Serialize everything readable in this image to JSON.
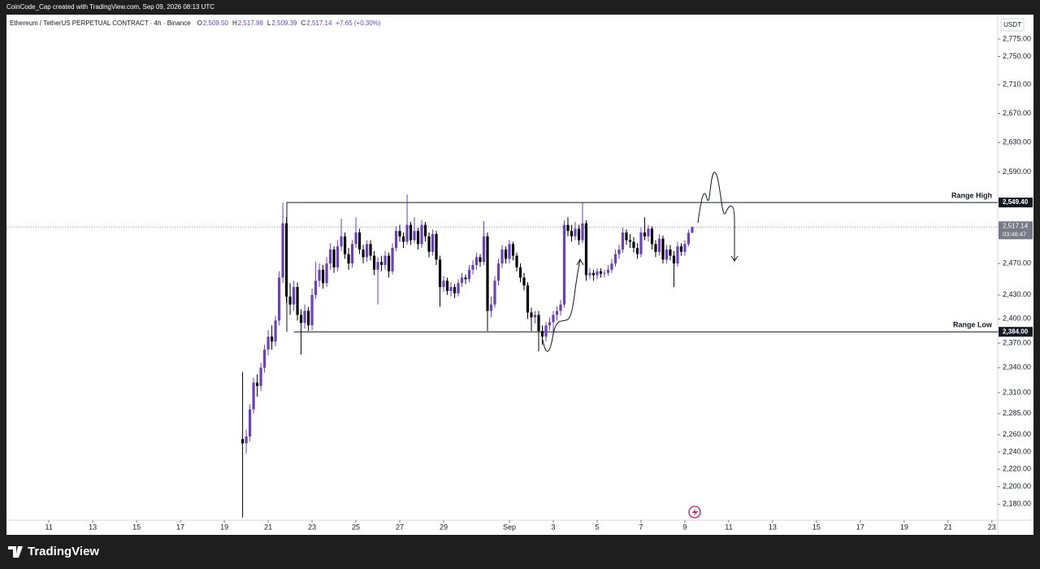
{
  "watermark": "CoinCode_Cap created with TradingView.com, Sep 09, 2026 08:13 UTC",
  "footer": "TradingView",
  "chart_data": {
    "type": "candlestick",
    "title": "Ethereum / TetherUS PERPETUAL CONTRACT · 4h · Binance",
    "ohlc_legend": [
      {
        "label": "O",
        "value": "2,509.50"
      },
      {
        "label": "H",
        "value": "2,517.98"
      },
      {
        "label": "L",
        "value": "2,509.39"
      },
      {
        "label": "C",
        "value": "2,517.14"
      }
    ],
    "change": "+7.65 (+0.30%)",
    "y_axis_label": "USDT",
    "up_color": "#6a3fc4",
    "down_color": "#000000",
    "log_scale": true,
    "ylim": [
      2162,
      2808
    ],
    "yticks": [
      {
        "value": 2180,
        "label": "2,180.00"
      },
      {
        "value": 2200,
        "label": "2,200.00"
      },
      {
        "value": 2220,
        "label": "2,220.00"
      },
      {
        "value": 2240,
        "label": "2,240.00"
      },
      {
        "value": 2260,
        "label": "2,260.00"
      },
      {
        "value": 2285,
        "label": "2,285.00"
      },
      {
        "value": 2310,
        "label": "2,310.00"
      },
      {
        "value": 2340,
        "label": "2,340.00"
      },
      {
        "value": 2370,
        "label": "2,370.00"
      },
      {
        "value": 2400,
        "label": "2,400.00"
      },
      {
        "value": 2430,
        "label": "2,430.00"
      },
      {
        "value": 2470,
        "label": "2,470.00"
      },
      {
        "value": 2590,
        "label": "2,590.00"
      },
      {
        "value": 2630,
        "label": "2,630.00"
      },
      {
        "value": 2670,
        "label": "2,670.00"
      },
      {
        "value": 2710,
        "label": "2,710.00"
      },
      {
        "value": 2750,
        "label": "2,750.00"
      },
      {
        "value": 2775,
        "label": "2,775.00"
      }
    ],
    "xlim": [
      -11.6,
      259.6
    ],
    "xticks": [
      {
        "value": 0,
        "label": "11"
      },
      {
        "value": 12,
        "label": "13"
      },
      {
        "value": 24,
        "label": "15"
      },
      {
        "value": 36,
        "label": "17"
      },
      {
        "value": 48,
        "label": "19"
      },
      {
        "value": 60,
        "label": "21"
      },
      {
        "value": 72,
        "label": "23"
      },
      {
        "value": 84,
        "label": "25"
      },
      {
        "value": 96,
        "label": "27"
      },
      {
        "value": 108,
        "label": "29"
      },
      {
        "value": 126,
        "label": "Sep"
      },
      {
        "value": 138,
        "label": "3"
      },
      {
        "value": 150,
        "label": "5"
      },
      {
        "value": 162,
        "label": "7"
      },
      {
        "value": 174,
        "label": "9"
      },
      {
        "value": 186,
        "label": "11"
      },
      {
        "value": 198,
        "label": "13"
      },
      {
        "value": 210,
        "label": "15"
      },
      {
        "value": 222,
        "label": "17"
      },
      {
        "value": 234,
        "label": "19"
      },
      {
        "value": 246,
        "label": "21"
      },
      {
        "value": 258,
        "label": "23"
      }
    ],
    "x": [
      53,
      54,
      55,
      56,
      57,
      58,
      59,
      60,
      61,
      62,
      63,
      64,
      65,
      66,
      67,
      68,
      69,
      70,
      71,
      72,
      73,
      74,
      75,
      76,
      77,
      78,
      79,
      80,
      81,
      82,
      83,
      84,
      85,
      86,
      87,
      88,
      89,
      90,
      91,
      92,
      93,
      94,
      95,
      96,
      97,
      98,
      99,
      100,
      101,
      102,
      103,
      104,
      105,
      106,
      107,
      108,
      109,
      110,
      111,
      112,
      113,
      114,
      115,
      116,
      117,
      118,
      119,
      120,
      121,
      122,
      123,
      124,
      125,
      126,
      127,
      128,
      129,
      130,
      131,
      132,
      133,
      134,
      135,
      136,
      137,
      138,
      139,
      140,
      141,
      142,
      143,
      144,
      145,
      146,
      147,
      148,
      149,
      150,
      151,
      152,
      153,
      154,
      155,
      156,
      157,
      158,
      159,
      160,
      161,
      162,
      163,
      164,
      165,
      166,
      167,
      168,
      169,
      170,
      171,
      172,
      173,
      174,
      175,
      176
    ],
    "open": [
      2255,
      2250,
      2258,
      2290,
      2322,
      2318,
      2340,
      2362,
      2378,
      2372,
      2398,
      2452,
      2522,
      2428,
      2418,
      2440,
      2405,
      2395,
      2410,
      2392,
      2430,
      2448,
      2462,
      2445,
      2470,
      2488,
      2465,
      2492,
      2505,
      2482,
      2470,
      2495,
      2510,
      2488,
      2478,
      2495,
      2480,
      2462,
      2472,
      2468,
      2480,
      2460,
      2490,
      2512,
      2505,
      2498,
      2520,
      2500,
      2512,
      2495,
      2520,
      2505,
      2485,
      2508,
      2475,
      2440,
      2448,
      2435,
      2440,
      2432,
      2445,
      2452,
      2450,
      2462,
      2468,
      2478,
      2472,
      2505,
      2410,
      2418,
      2448,
      2470,
      2488,
      2476,
      2495,
      2480,
      2465,
      2452,
      2442,
      2408,
      2402,
      2405,
      2385,
      2378,
      2392,
      2396,
      2405,
      2410,
      2418,
      2520,
      2512,
      2505,
      2515,
      2500,
      2522,
      2455,
      2458,
      2455,
      2460,
      2457,
      2458,
      2462,
      2470,
      2482,
      2488,
      2510,
      2500,
      2498,
      2490,
      2482,
      2510,
      2505,
      2515,
      2495,
      2485,
      2502,
      2475,
      2488,
      2480,
      2470,
      2492,
      2485,
      2495,
      2509.5
    ],
    "high": [
      2335,
      2266,
      2296,
      2328,
      2332,
      2346,
      2368,
      2386,
      2392,
      2404,
      2460,
      2549,
      2530,
      2445,
      2448,
      2446,
      2412,
      2418,
      2415,
      2438,
      2472,
      2470,
      2468,
      2478,
      2496,
      2492,
      2500,
      2528,
      2510,
      2490,
      2500,
      2530,
      2515,
      2494,
      2500,
      2500,
      2486,
      2478,
      2480,
      2486,
      2484,
      2496,
      2518,
      2520,
      2510,
      2560,
      2524,
      2530,
      2516,
      2526,
      2524,
      2510,
      2514,
      2512,
      2480,
      2454,
      2452,
      2446,
      2444,
      2450,
      2458,
      2456,
      2468,
      2474,
      2484,
      2482,
      2525,
      2510,
      2428,
      2454,
      2476,
      2494,
      2492,
      2500,
      2498,
      2484,
      2470,
      2458,
      2446,
      2414,
      2410,
      2410,
      2392,
      2396,
      2402,
      2410,
      2416,
      2424,
      2526,
      2530,
      2520,
      2524,
      2520,
      2549,
      2526,
      2464,
      2462,
      2464,
      2464,
      2462,
      2468,
      2476,
      2488,
      2494,
      2516,
      2514,
      2508,
      2504,
      2496,
      2516,
      2530,
      2520,
      2518,
      2500,
      2508,
      2506,
      2494,
      2494,
      2486,
      2498,
      2496,
      2500,
      2514,
      2517.98
    ],
    "low": [
      2165,
      2238,
      2252,
      2285,
      2305,
      2312,
      2334,
      2355,
      2362,
      2366,
      2392,
      2445,
      2420,
      2405,
      2410,
      2398,
      2356,
      2388,
      2385,
      2386,
      2425,
      2440,
      2438,
      2440,
      2462,
      2458,
      2460,
      2486,
      2476,
      2462,
      2465,
      2490,
      2482,
      2470,
      2472,
      2474,
      2455,
      2418,
      2460,
      2462,
      2452,
      2456,
      2486,
      2498,
      2490,
      2494,
      2494,
      2496,
      2488,
      2490,
      2498,
      2478,
      2480,
      2468,
      2415,
      2434,
      2430,
      2428,
      2426,
      2428,
      2440,
      2444,
      2446,
      2456,
      2462,
      2466,
      2468,
      2385,
      2402,
      2414,
      2442,
      2464,
      2470,
      2470,
      2474,
      2460,
      2446,
      2436,
      2400,
      2385,
      2394,
      2360,
      2368,
      2372,
      2386,
      2380,
      2398,
      2404,
      2414,
      2505,
      2498,
      2500,
      2494,
      2496,
      2448,
      2450,
      2448,
      2450,
      2452,
      2452,
      2454,
      2458,
      2466,
      2476,
      2484,
      2494,
      2490,
      2484,
      2476,
      2478,
      2500,
      2498,
      2488,
      2478,
      2480,
      2470,
      2470,
      2474,
      2440,
      2466,
      2480,
      2480,
      2492,
      2509.39
    ],
    "close": [
      2250,
      2258,
      2290,
      2322,
      2318,
      2340,
      2362,
      2378,
      2372,
      2398,
      2452,
      2522,
      2428,
      2418,
      2440,
      2405,
      2395,
      2410,
      2392,
      2430,
      2448,
      2462,
      2445,
      2470,
      2488,
      2465,
      2492,
      2505,
      2482,
      2470,
      2495,
      2510,
      2488,
      2478,
      2495,
      2480,
      2462,
      2472,
      2468,
      2480,
      2460,
      2490,
      2512,
      2505,
      2498,
      2520,
      2500,
      2512,
      2495,
      2520,
      2505,
      2485,
      2508,
      2475,
      2440,
      2448,
      2435,
      2440,
      2432,
      2445,
      2452,
      2450,
      2462,
      2468,
      2478,
      2472,
      2505,
      2410,
      2418,
      2448,
      2470,
      2488,
      2476,
      2495,
      2480,
      2465,
      2452,
      2442,
      2408,
      2402,
      2405,
      2385,
      2378,
      2392,
      2396,
      2405,
      2410,
      2418,
      2520,
      2512,
      2505,
      2515,
      2500,
      2522,
      2455,
      2458,
      2455,
      2460,
      2457,
      2458,
      2462,
      2470,
      2482,
      2488,
      2510,
      2500,
      2498,
      2490,
      2482,
      2510,
      2505,
      2515,
      2495,
      2485,
      2502,
      2475,
      2488,
      2480,
      2470,
      2492,
      2485,
      2495,
      2509.5,
      2517.14
    ],
    "levels": [
      {
        "name": "Range High",
        "value": 2549.4,
        "label": "2,549.40"
      },
      {
        "name": "Range Low",
        "value": 2384,
        "label": "2,384.00"
      }
    ],
    "last_price": {
      "value": 2517.14,
      "label": "2,517.14",
      "countdown": "03:46:47"
    }
  }
}
